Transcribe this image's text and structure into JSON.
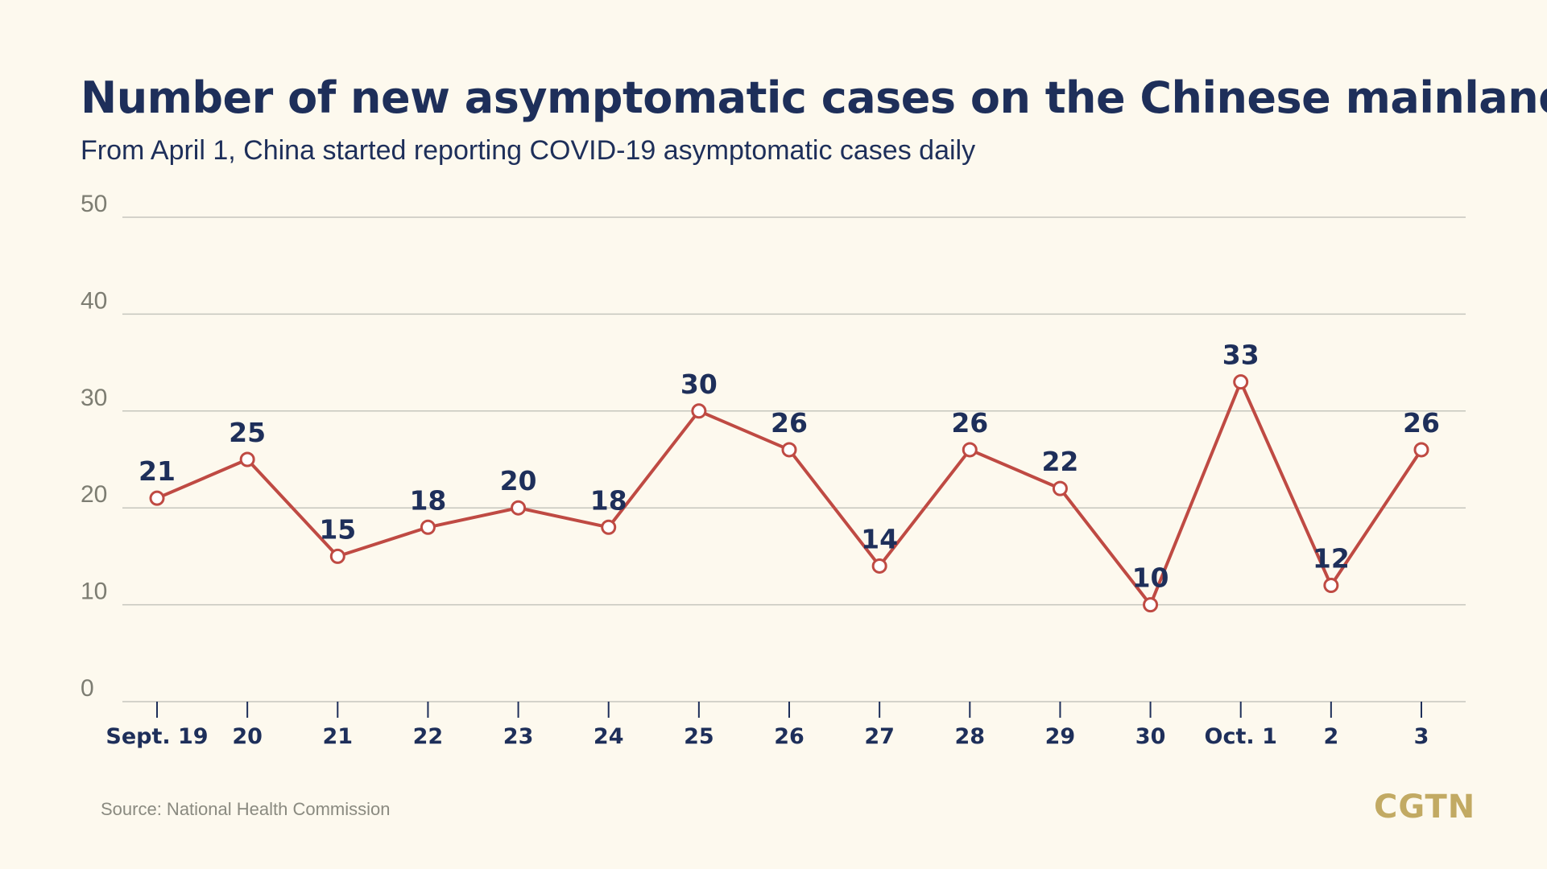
{
  "header": {
    "title": "Number of new asymptomatic cases on the Chinese mainland",
    "subtitle": "From April 1, China started reporting COVID-19 asymptomatic cases daily"
  },
  "footer": {
    "source": "Source: National Health Commission",
    "logo_text": "CGTN"
  },
  "colors": {
    "background": "#fdf9ee",
    "title": "#1e2f5a",
    "line": "#bf4a43",
    "logo": "#c2aa63"
  },
  "chart_data": {
    "type": "line",
    "title": "Number of new asymptomatic cases on the Chinese mainland",
    "subtitle": "From April 1, China started reporting COVID-19 asymptomatic cases daily",
    "xlabel": "",
    "ylabel": "",
    "categories": [
      "Sept. 19",
      "20",
      "21",
      "22",
      "23",
      "24",
      "25",
      "26",
      "27",
      "28",
      "29",
      "30",
      "Oct. 1",
      "2",
      "3"
    ],
    "series": [
      {
        "values": [
          21,
          25,
          15,
          18,
          20,
          18,
          30,
          26,
          14,
          26,
          22,
          10,
          33,
          12,
          26
        ]
      }
    ],
    "y_ticks": [
      0,
      10,
      20,
      30,
      40,
      50
    ],
    "ylim": [
      0,
      50
    ],
    "grid": true,
    "legend": "none",
    "data_labels": true
  }
}
